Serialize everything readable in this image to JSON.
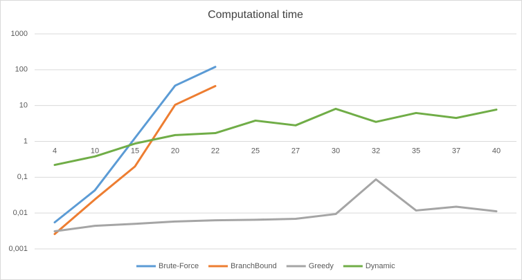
{
  "chart_data": {
    "type": "line",
    "title": "Computational time",
    "categories": [
      "4",
      "10",
      "15",
      "20",
      "22",
      "25",
      "27",
      "30",
      "32",
      "35",
      "37",
      "40"
    ],
    "series": [
      {
        "name": "Brute-Force",
        "color": "#5b9bd5",
        "values": [
          0.0055,
          0.043,
          1.25,
          36,
          120,
          null,
          null,
          null,
          null,
          null,
          null,
          null
        ]
      },
      {
        "name": "BranchBound",
        "color": "#ed7d31",
        "values": [
          0.0026,
          0.024,
          0.2,
          10.5,
          35,
          null,
          null,
          null,
          null,
          null,
          null,
          null
        ]
      },
      {
        "name": "Greedy",
        "color": "#a5a5a5",
        "values": [
          0.0031,
          0.0044,
          0.005,
          0.0058,
          0.0063,
          0.0065,
          0.0069,
          0.0094,
          0.087,
          0.0118,
          0.015,
          0.0112
        ]
      },
      {
        "name": "Dynamic",
        "color": "#70ad47",
        "values": [
          0.22,
          0.38,
          0.87,
          1.5,
          1.7,
          3.8,
          2.8,
          8.1,
          3.5,
          6.2,
          4.5,
          7.7
        ]
      }
    ],
    "ylim": [
      0.001,
      1000
    ],
    "log_y": true,
    "yticks": [
      {
        "value": 1000,
        "label": "1000"
      },
      {
        "value": 100,
        "label": "100"
      },
      {
        "value": 10,
        "label": "10"
      },
      1,
      {
        "value": 0.1,
        "label": "0,1"
      },
      {
        "value": 0.01,
        "label": "0,01"
      },
      {
        "value": 0.001,
        "label": "0,001"
      }
    ],
    "category_axis_at": 1,
    "grid": true,
    "legend": "bottom"
  }
}
